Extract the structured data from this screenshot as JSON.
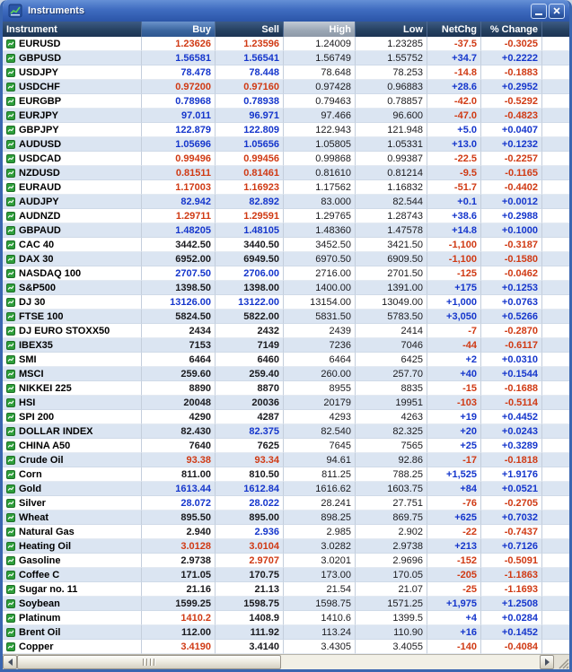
{
  "window": {
    "title": "Instruments"
  },
  "colors": {
    "up": "#1536cc",
    "down": "#d03a14",
    "neutral": "#1a1a1e",
    "row_alt": "#dbe5f2",
    "titlebar": "#3f6cc0",
    "header": "#25405f"
  },
  "table": {
    "columns": [
      {
        "key": "instrument",
        "label": "Instrument",
        "cls": "hc-inst"
      },
      {
        "key": "buy",
        "label": "Buy",
        "cls": "hc-buy"
      },
      {
        "key": "sell",
        "label": "Sell",
        "cls": ""
      },
      {
        "key": "high",
        "label": "High",
        "cls": "hc-high"
      },
      {
        "key": "low",
        "label": "Low",
        "cls": ""
      },
      {
        "key": "netchg",
        "label": "NetChg",
        "cls": ""
      },
      {
        "key": "pct_change",
        "label": "% Change",
        "cls": ""
      }
    ],
    "rows": [
      {
        "name": "EURUSD",
        "buy": "1.23626",
        "sell": "1.23596",
        "high": "1.24009",
        "low": "1.23285",
        "chg": "-37.5",
        "pct": "-0.3025",
        "bc": "down",
        "sc": "down"
      },
      {
        "name": "GBPUSD",
        "buy": "1.56581",
        "sell": "1.56541",
        "high": "1.56749",
        "low": "1.55752",
        "chg": "+34.7",
        "pct": "+0.2222",
        "bc": "up",
        "sc": "up"
      },
      {
        "name": "USDJPY",
        "buy": "78.478",
        "sell": "78.448",
        "high": "78.648",
        "low": "78.253",
        "chg": "-14.8",
        "pct": "-0.1883",
        "bc": "up",
        "sc": "up"
      },
      {
        "name": "USDCHF",
        "buy": "0.97200",
        "sell": "0.97160",
        "high": "0.97428",
        "low": "0.96883",
        "chg": "+28.6",
        "pct": "+0.2952",
        "bc": "down",
        "sc": "down"
      },
      {
        "name": "EURGBP",
        "buy": "0.78968",
        "sell": "0.78938",
        "high": "0.79463",
        "low": "0.78857",
        "chg": "-42.0",
        "pct": "-0.5292",
        "bc": "up",
        "sc": "up"
      },
      {
        "name": "EURJPY",
        "buy": "97.011",
        "sell": "96.971",
        "high": "97.466",
        "low": "96.600",
        "chg": "-47.0",
        "pct": "-0.4823",
        "bc": "up",
        "sc": "up"
      },
      {
        "name": "GBPJPY",
        "buy": "122.879",
        "sell": "122.809",
        "high": "122.943",
        "low": "121.948",
        "chg": "+5.0",
        "pct": "+0.0407",
        "bc": "up",
        "sc": "up"
      },
      {
        "name": "AUDUSD",
        "buy": "1.05696",
        "sell": "1.05656",
        "high": "1.05805",
        "low": "1.05331",
        "chg": "+13.0",
        "pct": "+0.1232",
        "bc": "up",
        "sc": "up"
      },
      {
        "name": "USDCAD",
        "buy": "0.99496",
        "sell": "0.99456",
        "high": "0.99868",
        "low": "0.99387",
        "chg": "-22.5",
        "pct": "-0.2257",
        "bc": "down",
        "sc": "down"
      },
      {
        "name": "NZDUSD",
        "buy": "0.81511",
        "sell": "0.81461",
        "high": "0.81610",
        "low": "0.81214",
        "chg": "-9.5",
        "pct": "-0.1165",
        "bc": "down",
        "sc": "down"
      },
      {
        "name": "EURAUD",
        "buy": "1.17003",
        "sell": "1.16923",
        "high": "1.17562",
        "low": "1.16832",
        "chg": "-51.7",
        "pct": "-0.4402",
        "bc": "down",
        "sc": "down"
      },
      {
        "name": "AUDJPY",
        "buy": "82.942",
        "sell": "82.892",
        "high": "83.000",
        "low": "82.544",
        "chg": "+0.1",
        "pct": "+0.0012",
        "bc": "up",
        "sc": "up"
      },
      {
        "name": "AUDNZD",
        "buy": "1.29711",
        "sell": "1.29591",
        "high": "1.29765",
        "low": "1.28743",
        "chg": "+38.6",
        "pct": "+0.2988",
        "bc": "down",
        "sc": "down"
      },
      {
        "name": "GBPAUD",
        "buy": "1.48205",
        "sell": "1.48105",
        "high": "1.48360",
        "low": "1.47578",
        "chg": "+14.8",
        "pct": "+0.1000",
        "bc": "up",
        "sc": "up"
      },
      {
        "name": "CAC 40",
        "buy": "3442.50",
        "sell": "3440.50",
        "high": "3452.50",
        "low": "3421.50",
        "chg": "-1,100",
        "pct": "-0.3187",
        "bc": "flat",
        "sc": "flat"
      },
      {
        "name": "DAX 30",
        "buy": "6952.00",
        "sell": "6949.50",
        "high": "6970.50",
        "low": "6909.50",
        "chg": "-1,100",
        "pct": "-0.1580",
        "bc": "flat",
        "sc": "flat"
      },
      {
        "name": "NASDAQ 100",
        "buy": "2707.50",
        "sell": "2706.00",
        "high": "2716.00",
        "low": "2701.50",
        "chg": "-125",
        "pct": "-0.0462",
        "bc": "up",
        "sc": "up"
      },
      {
        "name": "S&P500",
        "buy": "1398.50",
        "sell": "1398.00",
        "high": "1400.00",
        "low": "1391.00",
        "chg": "+175",
        "pct": "+0.1253",
        "bc": "flat",
        "sc": "flat"
      },
      {
        "name": "DJ 30",
        "buy": "13126.00",
        "sell": "13122.00",
        "high": "13154.00",
        "low": "13049.00",
        "chg": "+1,000",
        "pct": "+0.0763",
        "bc": "up",
        "sc": "up"
      },
      {
        "name": "FTSE 100",
        "buy": "5824.50",
        "sell": "5822.00",
        "high": "5831.50",
        "low": "5783.50",
        "chg": "+3,050",
        "pct": "+0.5266",
        "bc": "flat",
        "sc": "flat"
      },
      {
        "name": "DJ EURO STOXX50",
        "buy": "2434",
        "sell": "2432",
        "high": "2439",
        "low": "2414",
        "chg": "-7",
        "pct": "-0.2870",
        "bc": "flat",
        "sc": "flat"
      },
      {
        "name": "IBEX35",
        "buy": "7153",
        "sell": "7149",
        "high": "7236",
        "low": "7046",
        "chg": "-44",
        "pct": "-0.6117",
        "bc": "flat",
        "sc": "flat"
      },
      {
        "name": "SMI",
        "buy": "6464",
        "sell": "6460",
        "high": "6464",
        "low": "6425",
        "chg": "+2",
        "pct": "+0.0310",
        "bc": "flat",
        "sc": "flat"
      },
      {
        "name": "MSCI",
        "buy": "259.60",
        "sell": "259.40",
        "high": "260.00",
        "low": "257.70",
        "chg": "+40",
        "pct": "+0.1544",
        "bc": "flat",
        "sc": "flat"
      },
      {
        "name": "NIKKEI 225",
        "buy": "8890",
        "sell": "8870",
        "high": "8955",
        "low": "8835",
        "chg": "-15",
        "pct": "-0.1688",
        "bc": "flat",
        "sc": "flat"
      },
      {
        "name": "HSI",
        "buy": "20048",
        "sell": "20036",
        "high": "20179",
        "low": "19951",
        "chg": "-103",
        "pct": "-0.5114",
        "bc": "flat",
        "sc": "flat"
      },
      {
        "name": "SPI 200",
        "buy": "4290",
        "sell": "4287",
        "high": "4293",
        "low": "4263",
        "chg": "+19",
        "pct": "+0.4452",
        "bc": "flat",
        "sc": "flat"
      },
      {
        "name": "DOLLAR INDEX",
        "buy": "82.430",
        "sell": "82.375",
        "high": "82.540",
        "low": "82.325",
        "chg": "+20",
        "pct": "+0.0243",
        "bc": "flat",
        "sc": "up"
      },
      {
        "name": "CHINA A50",
        "buy": "7640",
        "sell": "7625",
        "high": "7645",
        "low": "7565",
        "chg": "+25",
        "pct": "+0.3289",
        "bc": "flat",
        "sc": "flat"
      },
      {
        "name": "Crude Oil",
        "buy": "93.38",
        "sell": "93.34",
        "high": "94.61",
        "low": "92.86",
        "chg": "-17",
        "pct": "-0.1818",
        "bc": "down",
        "sc": "down"
      },
      {
        "name": "Corn",
        "buy": "811.00",
        "sell": "810.50",
        "high": "811.25",
        "low": "788.25",
        "chg": "+1,525",
        "pct": "+1.9176",
        "bc": "flat",
        "sc": "flat"
      },
      {
        "name": "Gold",
        "buy": "1613.44",
        "sell": "1612.84",
        "high": "1616.62",
        "low": "1603.75",
        "chg": "+84",
        "pct": "+0.0521",
        "bc": "up",
        "sc": "up"
      },
      {
        "name": "Silver",
        "buy": "28.072",
        "sell": "28.022",
        "high": "28.241",
        "low": "27.751",
        "chg": "-76",
        "pct": "-0.2705",
        "bc": "up",
        "sc": "up"
      },
      {
        "name": "Wheat",
        "buy": "895.50",
        "sell": "895.00",
        "high": "898.25",
        "low": "869.75",
        "chg": "+625",
        "pct": "+0.7032",
        "bc": "flat",
        "sc": "flat"
      },
      {
        "name": "Natural Gas",
        "buy": "2.940",
        "sell": "2.936",
        "high": "2.985",
        "low": "2.902",
        "chg": "-22",
        "pct": "-0.7437",
        "bc": "flat",
        "sc": "up"
      },
      {
        "name": "Heating Oil",
        "buy": "3.0128",
        "sell": "3.0104",
        "high": "3.0282",
        "low": "2.9738",
        "chg": "+213",
        "pct": "+0.7126",
        "bc": "down",
        "sc": "down"
      },
      {
        "name": "Gasoline",
        "buy": "2.9738",
        "sell": "2.9707",
        "high": "3.0201",
        "low": "2.9696",
        "chg": "-152",
        "pct": "-0.5091",
        "bc": "flat",
        "sc": "down"
      },
      {
        "name": "Coffee C",
        "buy": "171.05",
        "sell": "170.75",
        "high": "173.00",
        "low": "170.05",
        "chg": "-205",
        "pct": "-1.1863",
        "bc": "flat",
        "sc": "flat"
      },
      {
        "name": "Sugar no. 11",
        "buy": "21.16",
        "sell": "21.13",
        "high": "21.54",
        "low": "21.07",
        "chg": "-25",
        "pct": "-1.1693",
        "bc": "flat",
        "sc": "flat"
      },
      {
        "name": "Soybean",
        "buy": "1599.25",
        "sell": "1598.75",
        "high": "1598.75",
        "low": "1571.25",
        "chg": "+1,975",
        "pct": "+1.2508",
        "bc": "flat",
        "sc": "flat"
      },
      {
        "name": "Platinum",
        "buy": "1410.2",
        "sell": "1408.9",
        "high": "1410.6",
        "low": "1399.5",
        "chg": "+4",
        "pct": "+0.0284",
        "bc": "down",
        "sc": "flat"
      },
      {
        "name": "Brent Oil",
        "buy": "112.00",
        "sell": "111.92",
        "high": "113.24",
        "low": "110.90",
        "chg": "+16",
        "pct": "+0.1452",
        "bc": "flat",
        "sc": "flat"
      },
      {
        "name": "Copper",
        "buy": "3.4190",
        "sell": "3.4140",
        "high": "3.4305",
        "low": "3.4055",
        "chg": "-140",
        "pct": "-0.4084",
        "bc": "down",
        "sc": "flat"
      }
    ]
  }
}
